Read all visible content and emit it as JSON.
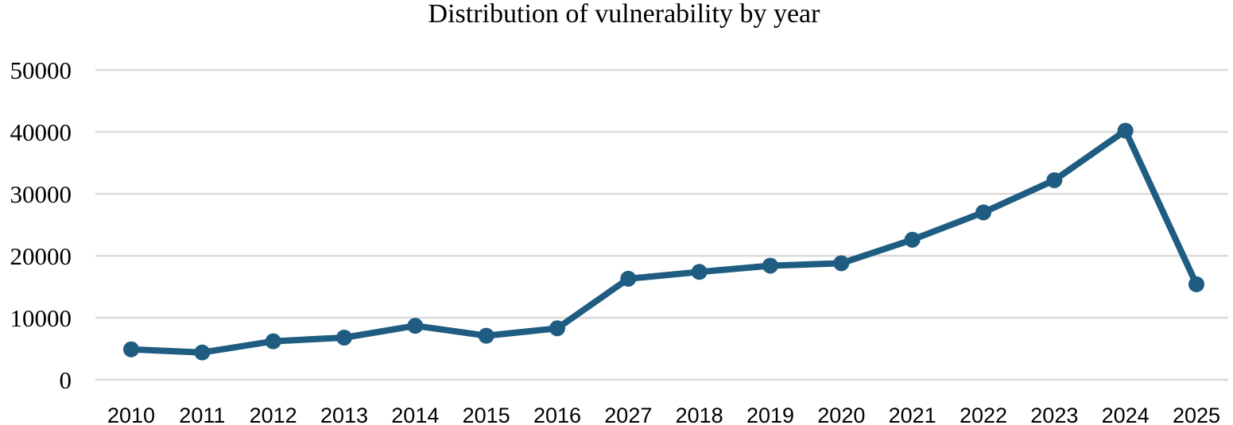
{
  "chart_data": {
    "type": "line",
    "title": "Distribution of vulnerability by year",
    "xlabel": "",
    "ylabel": "",
    "categories": [
      "2010",
      "2011",
      "2012",
      "2013",
      "2014",
      "2015",
      "2016",
      "2027",
      "2018",
      "2019",
      "2020",
      "2021",
      "2022",
      "2023",
      "2024",
      "2025"
    ],
    "series": [
      {
        "values": [
          4900,
          4400,
          6200,
          6800,
          8700,
          7100,
          8300,
          16300,
          17400,
          18400,
          18800,
          22600,
          27000,
          32200,
          40200,
          15400
        ]
      }
    ],
    "ylim": [
      0,
      50000
    ],
    "yticks": [
      "0",
      "10000",
      "20000",
      "30000",
      "40000",
      "50000"
    ],
    "grid": true,
    "legend": "none",
    "color": "#1f5c82"
  }
}
